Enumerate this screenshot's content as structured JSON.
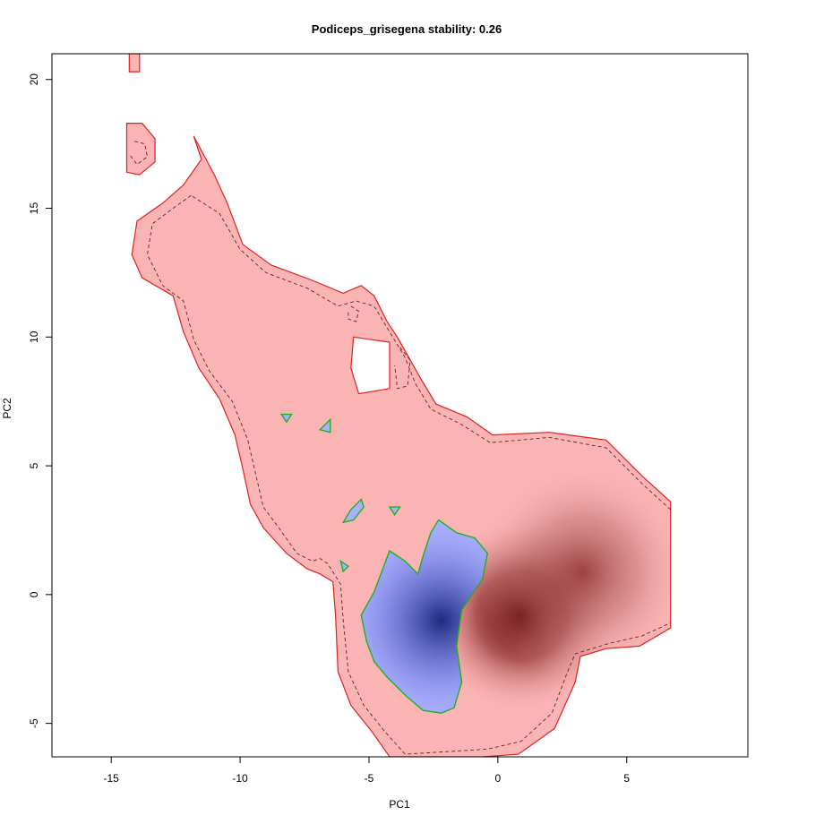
{
  "chart_data": {
    "type": "heatmap",
    "title": "Podiceps_grisegena stability: 0.26",
    "xlabel": "PC1",
    "ylabel": "PC2",
    "xlim": [
      -17.3,
      9.7
    ],
    "ylim": [
      -6.3,
      21.0
    ],
    "x_ticks": [
      {
        "value": -15,
        "label": "-15"
      },
      {
        "value": -10,
        "label": "-10"
      },
      {
        "value": -5,
        "label": "-5"
      },
      {
        "value": 0,
        "label": "0"
      },
      {
        "value": 5,
        "label": "5"
      }
    ],
    "y_ticks": [
      {
        "value": -5,
        "label": "-5"
      },
      {
        "value": 0,
        "label": "0"
      },
      {
        "value": 5,
        "label": "5"
      },
      {
        "value": 10,
        "label": "10"
      },
      {
        "value": 15,
        "label": "15"
      },
      {
        "value": 20,
        "label": "20"
      }
    ],
    "grid": false,
    "legend": "none",
    "colors": {
      "range_fill": "#fbb4b4",
      "density_peak": "#5c0000",
      "overlap_fill": "#aab0ff",
      "overlap_peak": "#1c2a80",
      "range_outline": "#e02020",
      "overlap_outline": "#20b020",
      "inner_contour": "#702020"
    },
    "density_peaks": [
      {
        "region": "range",
        "x": 0.9,
        "y": -0.8
      },
      {
        "region": "range",
        "x": 3.3,
        "y": 0.9
      },
      {
        "region": "overlap",
        "x": -2.2,
        "y": -1.0
      }
    ],
    "regions": [
      {
        "name": "niche-range",
        "kind": "range",
        "points": [
          [
            -11.8,
            17.8
          ],
          [
            -11.5,
            16.9
          ],
          [
            -12.2,
            15.9
          ],
          [
            -13.0,
            15.2
          ],
          [
            -14.0,
            14.5
          ],
          [
            -14.2,
            13.2
          ],
          [
            -13.8,
            12.3
          ],
          [
            -12.6,
            11.6
          ],
          [
            -12.2,
            10.2
          ],
          [
            -11.6,
            8.8
          ],
          [
            -10.8,
            7.6
          ],
          [
            -10.2,
            6.2
          ],
          [
            -9.9,
            4.9
          ],
          [
            -9.6,
            3.5
          ],
          [
            -9.1,
            2.6
          ],
          [
            -8.2,
            1.6
          ],
          [
            -7.4,
            1.0
          ],
          [
            -6.9,
            0.8
          ],
          [
            -6.4,
            0.5
          ],
          [
            -6.3,
            -0.8
          ],
          [
            -6.2,
            -3.0
          ],
          [
            -5.7,
            -4.3
          ],
          [
            -4.9,
            -5.3
          ],
          [
            -4.2,
            -6.3
          ],
          [
            -0.6,
            -6.3
          ],
          [
            0.8,
            -6.2
          ],
          [
            2.2,
            -5.2
          ],
          [
            3.0,
            -3.4
          ],
          [
            3.2,
            -2.4
          ],
          [
            4.2,
            -2.1
          ],
          [
            5.5,
            -2.0
          ],
          [
            6.7,
            -1.3
          ],
          [
            6.7,
            3.6
          ],
          [
            5.6,
            4.6
          ],
          [
            4.2,
            6.0
          ],
          [
            2.0,
            6.3
          ],
          [
            -0.2,
            6.2
          ],
          [
            -1.2,
            6.9
          ],
          [
            -2.4,
            7.4
          ],
          [
            -3.0,
            8.4
          ],
          [
            -3.9,
            10.0
          ],
          [
            -4.3,
            10.6
          ],
          [
            -4.8,
            11.6
          ],
          [
            -5.3,
            12.0
          ],
          [
            -6.0,
            11.7
          ],
          [
            -7.2,
            12.2
          ],
          [
            -8.8,
            12.8
          ],
          [
            -9.9,
            13.6
          ],
          [
            -10.5,
            15.2
          ],
          [
            -11.0,
            16.3
          ]
        ]
      },
      {
        "name": "niche-range-islet-top",
        "kind": "range",
        "points": [
          [
            -14.3,
            21.0
          ],
          [
            -13.9,
            21.0
          ],
          [
            -13.9,
            20.3
          ],
          [
            -14.3,
            20.3
          ]
        ]
      },
      {
        "name": "niche-range-islet-upper",
        "kind": "range",
        "points": [
          [
            -14.4,
            18.3
          ],
          [
            -13.8,
            18.3
          ],
          [
            -13.3,
            17.7
          ],
          [
            -13.3,
            16.8
          ],
          [
            -13.9,
            16.3
          ],
          [
            -14.4,
            16.4
          ]
        ]
      },
      {
        "name": "niche-range-hole",
        "kind": "hole",
        "points": [
          [
            -5.6,
            10.0
          ],
          [
            -4.2,
            9.8
          ],
          [
            -4.2,
            8.0
          ],
          [
            -5.4,
            7.8
          ],
          [
            -5.7,
            8.8
          ]
        ]
      },
      {
        "name": "niche-overlap",
        "kind": "overlap",
        "points": [
          [
            -4.2,
            1.7
          ],
          [
            -3.6,
            1.3
          ],
          [
            -3.1,
            0.8
          ],
          [
            -2.9,
            1.5
          ],
          [
            -2.6,
            2.4
          ],
          [
            -2.3,
            2.9
          ],
          [
            -1.6,
            2.4
          ],
          [
            -0.9,
            2.2
          ],
          [
            -0.4,
            1.6
          ],
          [
            -0.6,
            0.6
          ],
          [
            -1.4,
            -0.6
          ],
          [
            -1.6,
            -2.0
          ],
          [
            -1.4,
            -3.4
          ],
          [
            -1.7,
            -4.4
          ],
          [
            -2.2,
            -4.6
          ],
          [
            -2.9,
            -4.5
          ],
          [
            -3.6,
            -3.9
          ],
          [
            -4.3,
            -3.2
          ],
          [
            -4.8,
            -2.6
          ],
          [
            -5.1,
            -1.8
          ],
          [
            -5.3,
            -0.8
          ],
          [
            -4.8,
            0.1
          ]
        ]
      },
      {
        "name": "overlap-islet-a",
        "kind": "overlap",
        "points": [
          [
            -8.4,
            7.0
          ],
          [
            -8.0,
            7.0
          ],
          [
            -8.2,
            6.7
          ]
        ]
      },
      {
        "name": "overlap-islet-b",
        "kind": "overlap",
        "points": [
          [
            -6.9,
            6.4
          ],
          [
            -6.5,
            6.8
          ],
          [
            -6.5,
            6.3
          ]
        ]
      },
      {
        "name": "overlap-islet-c",
        "kind": "overlap",
        "points": [
          [
            -6.0,
            2.8
          ],
          [
            -5.7,
            3.3
          ],
          [
            -5.3,
            3.7
          ],
          [
            -5.2,
            3.4
          ],
          [
            -5.6,
            2.9
          ]
        ]
      },
      {
        "name": "overlap-islet-d",
        "kind": "overlap",
        "points": [
          [
            -4.2,
            3.4
          ],
          [
            -3.8,
            3.4
          ],
          [
            -4.0,
            3.1
          ]
        ]
      },
      {
        "name": "overlap-islet-e",
        "kind": "overlap",
        "points": [
          [
            -6.1,
            1.3
          ],
          [
            -5.8,
            1.1
          ],
          [
            -6.0,
            0.9
          ]
        ]
      }
    ],
    "contours": [
      {
        "name": "contour-main-dashed",
        "style": "dashed",
        "points": [
          [
            -11.9,
            15.5
          ],
          [
            -12.6,
            15.0
          ],
          [
            -13.4,
            14.4
          ],
          [
            -13.6,
            13.2
          ],
          [
            -13.0,
            12.0
          ],
          [
            -12.2,
            11.4
          ],
          [
            -11.8,
            9.9
          ],
          [
            -11.2,
            8.7
          ],
          [
            -10.3,
            7.5
          ],
          [
            -9.7,
            6.0
          ],
          [
            -9.4,
            4.7
          ],
          [
            -9.1,
            3.4
          ],
          [
            -8.5,
            2.6
          ],
          [
            -7.8,
            1.6
          ],
          [
            -7.2,
            1.3
          ],
          [
            -6.9,
            1.4
          ],
          [
            -6.6,
            1.2
          ],
          [
            -6.1,
            0.4
          ],
          [
            -6.0,
            -1.0
          ],
          [
            -5.8,
            -3.0
          ],
          [
            -5.2,
            -4.3
          ],
          [
            -4.4,
            -5.3
          ],
          [
            -3.6,
            -6.2
          ],
          [
            -0.4,
            -6.0
          ],
          [
            0.9,
            -5.7
          ],
          [
            2.1,
            -4.6
          ],
          [
            2.7,
            -3.0
          ],
          [
            3.0,
            -2.3
          ],
          [
            4.3,
            -1.9
          ],
          [
            5.6,
            -1.6
          ],
          [
            6.7,
            -1.1
          ]
        ]
      },
      {
        "name": "contour-top-dashed",
        "style": "dashed",
        "points": [
          [
            6.7,
            3.3
          ],
          [
            5.6,
            4.3
          ],
          [
            4.2,
            5.7
          ],
          [
            2.0,
            6.1
          ],
          [
            -0.3,
            5.9
          ],
          [
            -1.4,
            6.6
          ],
          [
            -2.6,
            7.2
          ],
          [
            -3.2,
            8.2
          ],
          [
            -3.6,
            9.2
          ],
          [
            -4.2,
            10.2
          ],
          [
            -4.8,
            11.2
          ],
          [
            -5.5,
            11.4
          ],
          [
            -6.2,
            11.2
          ],
          [
            -7.4,
            11.9
          ],
          [
            -9.0,
            12.5
          ],
          [
            -10.0,
            13.4
          ],
          [
            -10.8,
            14.8
          ],
          [
            -11.9,
            15.5
          ]
        ]
      },
      {
        "name": "contour-inner-loop",
        "style": "dashed",
        "points": [
          [
            -5.7,
            11.2
          ],
          [
            -5.4,
            11.0
          ],
          [
            -5.5,
            10.6
          ],
          [
            -5.8,
            10.7
          ],
          [
            -5.8,
            11.0
          ]
        ]
      },
      {
        "name": "contour-islet-loop",
        "style": "dashed",
        "points": [
          [
            -14.1,
            17.6
          ],
          [
            -13.7,
            17.5
          ],
          [
            -13.6,
            17.0
          ],
          [
            -14.0,
            16.7
          ],
          [
            -14.3,
            17.1
          ]
        ]
      },
      {
        "name": "contour-hole-loop",
        "style": "dashed",
        "points": [
          [
            -3.8,
            9.6
          ],
          [
            -3.4,
            9.1
          ],
          [
            -3.5,
            8.1
          ],
          [
            -3.9,
            8.0
          ],
          [
            -4.0,
            8.9
          ]
        ]
      }
    ]
  }
}
